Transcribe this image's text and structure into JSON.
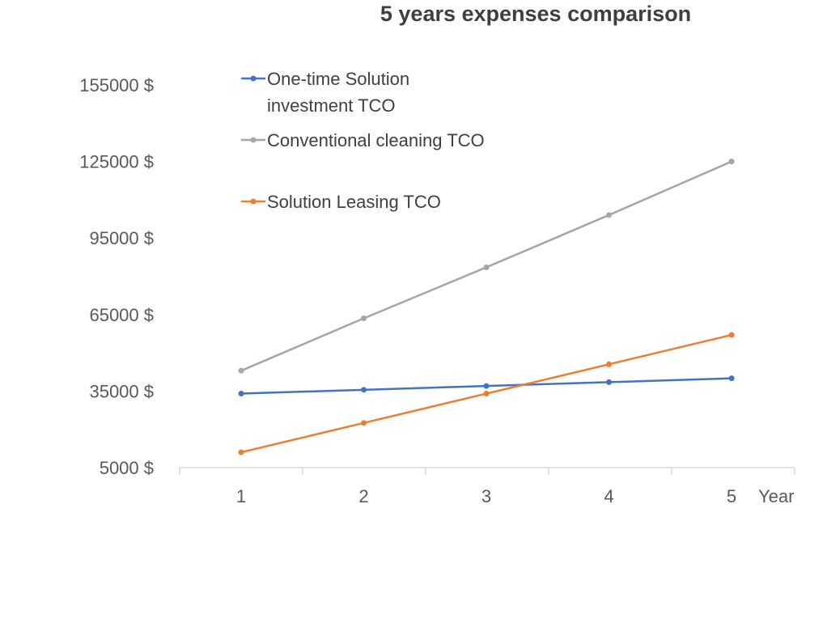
{
  "chart_data": {
    "type": "line",
    "title": "5 years expenses comparison",
    "xlabel": "Year",
    "ylabel": "",
    "categories": [
      "1",
      "2",
      "3",
      "4",
      "5"
    ],
    "y_ticks": [
      "155000  $",
      "125000  $",
      "95000  $",
      "65000  $",
      "35000  $",
      "5000  $"
    ],
    "y_tick_values": [
      155000,
      125000,
      95000,
      65000,
      35000,
      5000
    ],
    "ylim": [
      5000,
      155000
    ],
    "grid": false,
    "legend_position": "top-left inside",
    "series": [
      {
        "name": "One-time Solution investment TCO",
        "legend_lines": [
          "One-time Solution",
          "investment TCO"
        ],
        "color": "#4472c4",
        "values": [
          34000,
          35500,
          37000,
          38500,
          40000
        ]
      },
      {
        "name": "Conventional cleaning TCO",
        "legend_lines": [
          "Conventional cleaning TCO"
        ],
        "color": "#a5a5a5",
        "values": [
          43000,
          63500,
          83500,
          104000,
          125000
        ]
      },
      {
        "name": "Solution Leasing TCO",
        "legend_lines": [
          "Solution Leasing TCO"
        ],
        "color": "#ed7d31",
        "values": [
          11000,
          22500,
          34000,
          45500,
          57000
        ]
      }
    ]
  }
}
